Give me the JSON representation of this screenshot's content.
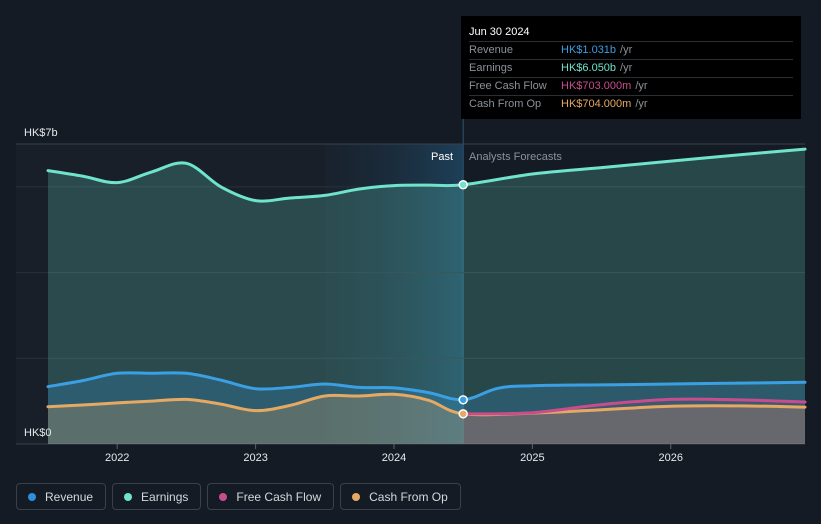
{
  "tooltip": {
    "date": "Jun 30 2024",
    "rows": [
      {
        "label": "Revenue",
        "value": "HK$1.031b",
        "unit": "/yr",
        "color": "#3b9fe4"
      },
      {
        "label": "Earnings",
        "value": "HK$6.050b",
        "unit": "/yr",
        "color": "#6fe3cc"
      },
      {
        "label": "Free Cash Flow",
        "value": "HK$703.000m",
        "unit": "/yr",
        "color": "#c74d8e"
      },
      {
        "label": "Cash From Op",
        "value": "HK$704.000m",
        "unit": "/yr",
        "color": "#e5a964"
      }
    ]
  },
  "labels": {
    "past": "Past",
    "forecast": "Analysts Forecasts"
  },
  "legend": [
    {
      "label": "Revenue",
      "color": "#2f8fdc"
    },
    {
      "label": "Earnings",
      "color": "#6fe3cc"
    },
    {
      "label": "Free Cash Flow",
      "color": "#c74d8e"
    },
    {
      "label": "Cash From Op",
      "color": "#e5a964"
    }
  ],
  "chart_data": {
    "type": "area",
    "ylabel_top": "HK$7b",
    "ylabel_bottom": "HK$0",
    "ylim": [
      0,
      7
    ],
    "xlim": [
      2021.5,
      2026.97
    ],
    "x_ticks": [
      2022,
      2023,
      2024,
      2025,
      2026
    ],
    "x_tick_labels": [
      "2022",
      "2023",
      "2024",
      "2025",
      "2026"
    ],
    "divider_x": 2024.5,
    "highlight_start_x": 2023.5,
    "series": [
      {
        "name": "Earnings",
        "color": "#6fe3cc",
        "points": [
          [
            2021.5,
            6.38
          ],
          [
            2021.75,
            6.25
          ],
          [
            2022.0,
            6.1
          ],
          [
            2022.25,
            6.35
          ],
          [
            2022.5,
            6.55
          ],
          [
            2022.75,
            6.0
          ],
          [
            2023.0,
            5.68
          ],
          [
            2023.25,
            5.74
          ],
          [
            2023.5,
            5.8
          ],
          [
            2023.75,
            5.95
          ],
          [
            2024.0,
            6.03
          ],
          [
            2024.25,
            6.04
          ],
          [
            2024.5,
            6.05
          ],
          [
            2025.0,
            6.3
          ],
          [
            2025.5,
            6.45
          ],
          [
            2026.0,
            6.6
          ],
          [
            2026.5,
            6.75
          ],
          [
            2026.97,
            6.88
          ]
        ]
      },
      {
        "name": "Revenue",
        "color": "#3b9fe4",
        "points": [
          [
            2021.5,
            1.34
          ],
          [
            2021.75,
            1.48
          ],
          [
            2022.0,
            1.65
          ],
          [
            2022.25,
            1.65
          ],
          [
            2022.5,
            1.65
          ],
          [
            2022.75,
            1.49
          ],
          [
            2023.0,
            1.29
          ],
          [
            2023.25,
            1.32
          ],
          [
            2023.5,
            1.4
          ],
          [
            2023.75,
            1.32
          ],
          [
            2024.0,
            1.31
          ],
          [
            2024.25,
            1.2
          ],
          [
            2024.5,
            1.031
          ],
          [
            2024.75,
            1.3
          ],
          [
            2025.0,
            1.36
          ],
          [
            2025.5,
            1.38
          ],
          [
            2026.0,
            1.4
          ],
          [
            2026.5,
            1.42
          ],
          [
            2026.97,
            1.44
          ]
        ]
      },
      {
        "name": "Cash From Op",
        "color": "#e5a964",
        "points": [
          [
            2021.5,
            0.87
          ],
          [
            2021.75,
            0.91
          ],
          [
            2022.0,
            0.96
          ],
          [
            2022.25,
            1.0
          ],
          [
            2022.5,
            1.04
          ],
          [
            2022.75,
            0.93
          ],
          [
            2023.0,
            0.78
          ],
          [
            2023.25,
            0.9
          ],
          [
            2023.5,
            1.12
          ],
          [
            2023.75,
            1.12
          ],
          [
            2024.0,
            1.16
          ],
          [
            2024.25,
            1.02
          ],
          [
            2024.5,
            0.704
          ],
          [
            2025.0,
            0.72
          ],
          [
            2025.5,
            0.8
          ],
          [
            2026.0,
            0.88
          ],
          [
            2026.5,
            0.89
          ],
          [
            2026.97,
            0.86
          ]
        ]
      },
      {
        "name": "Free Cash Flow",
        "color": "#c74d8e",
        "points": [
          [
            2024.5,
            0.703
          ],
          [
            2025.0,
            0.73
          ],
          [
            2025.5,
            0.92
          ],
          [
            2026.0,
            1.04
          ],
          [
            2026.5,
            1.03
          ],
          [
            2026.97,
            0.98
          ]
        ]
      }
    ],
    "markers": [
      {
        "series": "Earnings",
        "x": 2024.5,
        "y": 6.05
      },
      {
        "series": "Revenue",
        "x": 2024.5,
        "y": 1.031
      },
      {
        "series": "Cash From Op",
        "x": 2024.5,
        "y": 0.704
      }
    ]
  }
}
